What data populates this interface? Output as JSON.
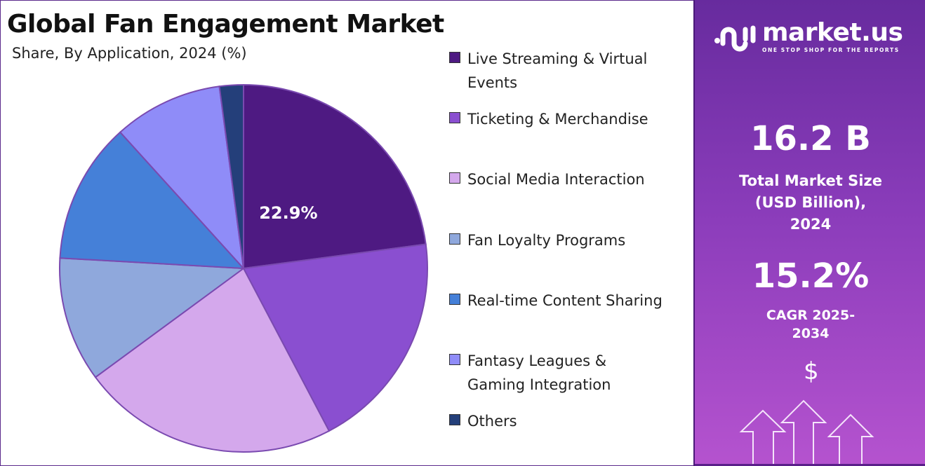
{
  "chart_data": {
    "type": "pie",
    "title": "Global Fan Engagement Market",
    "subtitle": "Share, By Application, 2024 (%)",
    "categories": [
      "Live Streaming & Virtual Events",
      "Ticketing & Merchandise",
      "Social Media Interaction",
      "Fan Loyalty Programs",
      "Real-time Content Sharing",
      "Fantasy Leagues & Gaming Integration",
      "Others"
    ],
    "values": [
      22.9,
      19.4,
      22.6,
      11.0,
      12.4,
      9.6,
      2.1
    ],
    "colors": [
      "#4e1a82",
      "#8a4fd0",
      "#d4a8ec",
      "#8fa8dc",
      "#4580d8",
      "#8f8cf8",
      "#243f7a"
    ],
    "data_labels": [
      "22.9%",
      "",
      "",
      "",
      "",
      "",
      ""
    ],
    "start_angle": "top, clockwise",
    "legend_position": "right"
  },
  "legend": [
    {
      "label": "Live Streaming & Virtual Events"
    },
    {
      "label": "Ticketing & Merchandise"
    },
    {
      "label": "Social Media Interaction"
    },
    {
      "label": "Fan Loyalty Programs"
    },
    {
      "label": "Real-time Content Sharing"
    },
    {
      "label": "Fantasy Leagues & Gaming Integration"
    },
    {
      "label": "Others"
    }
  ],
  "panel": {
    "logo_text": "market.us",
    "logo_tagline": "ONE STOP SHOP FOR THE REPORTS",
    "market_size_value": "16.2 B",
    "market_size_label": "Total Market Size (USD Billion), 2024",
    "cagr_value": "15.2%",
    "cagr_label": "CAGR 2025-2034",
    "currency_symbol": "$",
    "icon": "growth-arrows-icon"
  }
}
